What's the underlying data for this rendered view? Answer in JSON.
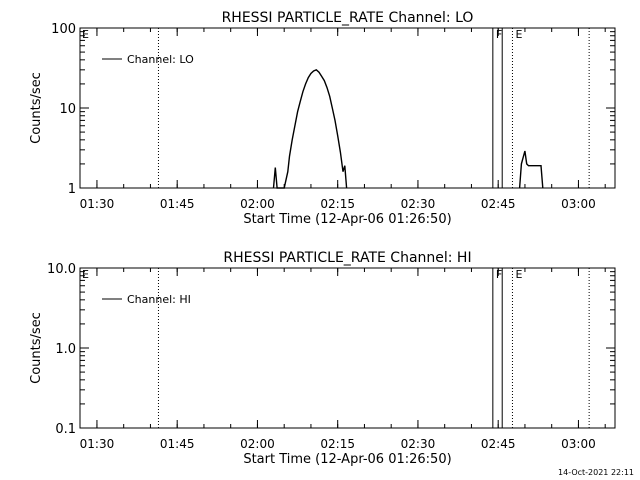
{
  "footer": {
    "timestamp": "14-Oct-2021 22:11"
  },
  "chart_data": [
    {
      "type": "line",
      "title": "RHESSI PARTICLE_RATE Channel: LO",
      "xlabel": "Start Time (12-Apr-06 01:26:50)",
      "ylabel": "Counts/sec",
      "yscale": "log",
      "ylim": [
        1,
        100
      ],
      "xlim_minutes_after_start": [
        0,
        100
      ],
      "x_tick_labels": [
        "01:30",
        "01:45",
        "02:00",
        "02:15",
        "02:30",
        "02:45",
        "03:00"
      ],
      "y_tick_labels": [
        "1",
        "10",
        "100"
      ],
      "legend": {
        "entry": "Channel: LO",
        "placement": "upper-left"
      },
      "annotations": [
        {
          "text": "E",
          "time": "01:26:50",
          "style": "label"
        },
        {
          "text": "",
          "time": "01:41:30",
          "style": "dotted"
        },
        {
          "text": "F",
          "time": "02:44:00",
          "style": "solid"
        },
        {
          "text": "",
          "time": "02:45:45",
          "style": "solid"
        },
        {
          "text": "E",
          "time": "02:47:40",
          "style": "dotted"
        },
        {
          "text": "",
          "time": "03:02:00",
          "style": "dotted"
        }
      ],
      "series": [
        {
          "x": [
            "02:03",
            "02:03:20",
            "02:03:40",
            "02:04",
            "02:05",
            "02:05:40",
            "02:06",
            "02:06:30",
            "02:07",
            "02:07:30",
            "02:08",
            "02:08:30",
            "02:09",
            "02:09:30",
            "02:10",
            "02:10:30",
            "02:11",
            "02:11:30",
            "02:12",
            "02:12:30",
            "02:13",
            "02:13:30",
            "02:14",
            "02:14:30",
            "02:15",
            "02:15:30",
            "02:16",
            "02:16:20",
            "02:16:40"
          ],
          "y": [
            1,
            1.8,
            1,
            1,
            1,
            1.6,
            2.5,
            4,
            6,
            9,
            12,
            16,
            20,
            24,
            27,
            29,
            30,
            28,
            25,
            22,
            18,
            14,
            10,
            7,
            4.5,
            2.8,
            1.6,
            1.9,
            1
          ],
          "x2": [
            "02:49",
            "02:49:20",
            "02:50",
            "02:50:20",
            "02:50:40",
            "02:53",
            "02:53:20"
          ],
          "y2": [
            1,
            2,
            2.9,
            2,
            1.9,
            1.9,
            1
          ]
        }
      ]
    },
    {
      "type": "line",
      "title": "RHESSI PARTICLE_RATE Channel: HI",
      "xlabel": "Start Time (12-Apr-06 01:26:50)",
      "ylabel": "Counts/sec",
      "yscale": "log",
      "ylim": [
        0.1,
        10
      ],
      "x_tick_labels": [
        "01:30",
        "01:45",
        "02:00",
        "02:15",
        "02:30",
        "02:45",
        "03:00"
      ],
      "y_tick_labels": [
        "0.1",
        "1.0",
        "10.0"
      ],
      "legend": {
        "entry": "Channel: HI",
        "placement": "upper-left"
      },
      "annotations": [
        {
          "text": "E",
          "time": "01:26:50",
          "style": "label"
        },
        {
          "text": "",
          "time": "01:41:30",
          "style": "dotted"
        },
        {
          "text": "F",
          "time": "02:44:00",
          "style": "solid"
        },
        {
          "text": "",
          "time": "02:45:45",
          "style": "solid"
        },
        {
          "text": "E",
          "time": "02:47:40",
          "style": "dotted"
        },
        {
          "text": "",
          "time": "03:02:00",
          "style": "dotted"
        }
      ],
      "series": []
    }
  ]
}
